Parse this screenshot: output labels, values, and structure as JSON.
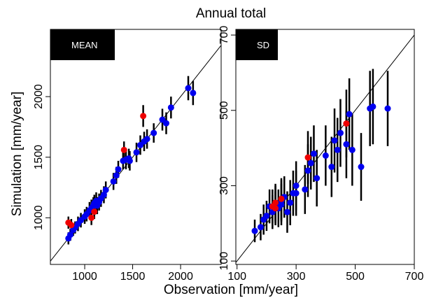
{
  "title": "Annual total",
  "xlabel": "Observation [mm/year]",
  "ylabel": "Simulation [mm/year]",
  "chart_data": [
    {
      "type": "scatter",
      "label": "MEAN",
      "xlim": [
        642,
        2423
      ],
      "ylim": [
        615,
        2555
      ],
      "xticks": [
        1000,
        1500,
        2000
      ],
      "yticks": [
        1000,
        1500,
        2000
      ],
      "diagonal": true,
      "series": [
        {
          "color": "#0000ee",
          "x": [
            830,
            850,
            880,
            900,
            930,
            960,
            1000,
            1020,
            1050,
            1070,
            1090,
            1100,
            1120,
            1130,
            1150,
            1170,
            1200,
            1220,
            1300,
            1330,
            1350,
            1400,
            1430,
            1460,
            1470,
            1540,
            1580,
            1620,
            1650,
            1720,
            1810,
            1850,
            1900,
            2080,
            2130
          ],
          "y": [
            830,
            860,
            900,
            920,
            950,
            980,
            1010,
            1030,
            1060,
            1080,
            1100,
            1120,
            1140,
            1100,
            1130,
            1160,
            1190,
            1230,
            1300,
            1350,
            1400,
            1470,
            1480,
            1490,
            1470,
            1540,
            1600,
            1630,
            1650,
            1700,
            1810,
            1780,
            1910,
            2070,
            2030
          ],
          "err": [
            50,
            50,
            50,
            50,
            60,
            60,
            60,
            60,
            70,
            70,
            70,
            70,
            70,
            70,
            70,
            70,
            70,
            70,
            70,
            70,
            70,
            70,
            80,
            80,
            80,
            80,
            80,
            80,
            80,
            80,
            90,
            90,
            90,
            100,
            100
          ]
        },
        {
          "color": "#ee0000",
          "x": [
            830,
            860,
            1070,
            1100,
            1410,
            1610
          ],
          "y": [
            960,
            940,
            1000,
            1050,
            1560,
            1840
          ],
          "err": [
            50,
            50,
            60,
            60,
            70,
            90
          ]
        }
      ]
    },
    {
      "type": "scatter",
      "label": "SD",
      "xlim": [
        96,
        700
      ],
      "ylim": [
        91,
        715
      ],
      "xticks": [
        100,
        300,
        500,
        700
      ],
      "yticks": [
        100,
        300,
        500,
        700
      ],
      "diagonal": true,
      "series": [
        {
          "color": "#0000ee",
          "x": [
            160,
            180,
            190,
            200,
            210,
            220,
            230,
            240,
            250,
            260,
            280,
            290,
            300,
            330,
            340,
            350,
            360,
            370,
            400,
            420,
            430,
            440,
            450,
            470,
            480,
            490,
            520,
            550,
            560,
            610,
            300,
            250,
            270
          ],
          "y": [
            180,
            190,
            210,
            220,
            245,
            230,
            250,
            240,
            260,
            270,
            255,
            280,
            300,
            290,
            340,
            360,
            385,
            320,
            380,
            350,
            420,
            395,
            440,
            410,
            490,
            395,
            350,
            505,
            510,
            505,
            280,
            250,
            230
          ],
          "err": [
            30,
            35,
            40,
            40,
            45,
            45,
            50,
            50,
            55,
            55,
            60,
            60,
            65,
            65,
            70,
            70,
            75,
            75,
            80,
            80,
            85,
            85,
            90,
            90,
            95,
            95,
            90,
            100,
            100,
            100,
            60,
            55,
            55
          ]
        },
        {
          "color": "#ee0000",
          "x": [
            220,
            230,
            250,
            340,
            470,
            230
          ],
          "y": [
            245,
            255,
            265,
            375,
            465,
            240
          ],
          "err": [
            45,
            50,
            55,
            70,
            90,
            45
          ]
        }
      ]
    }
  ]
}
